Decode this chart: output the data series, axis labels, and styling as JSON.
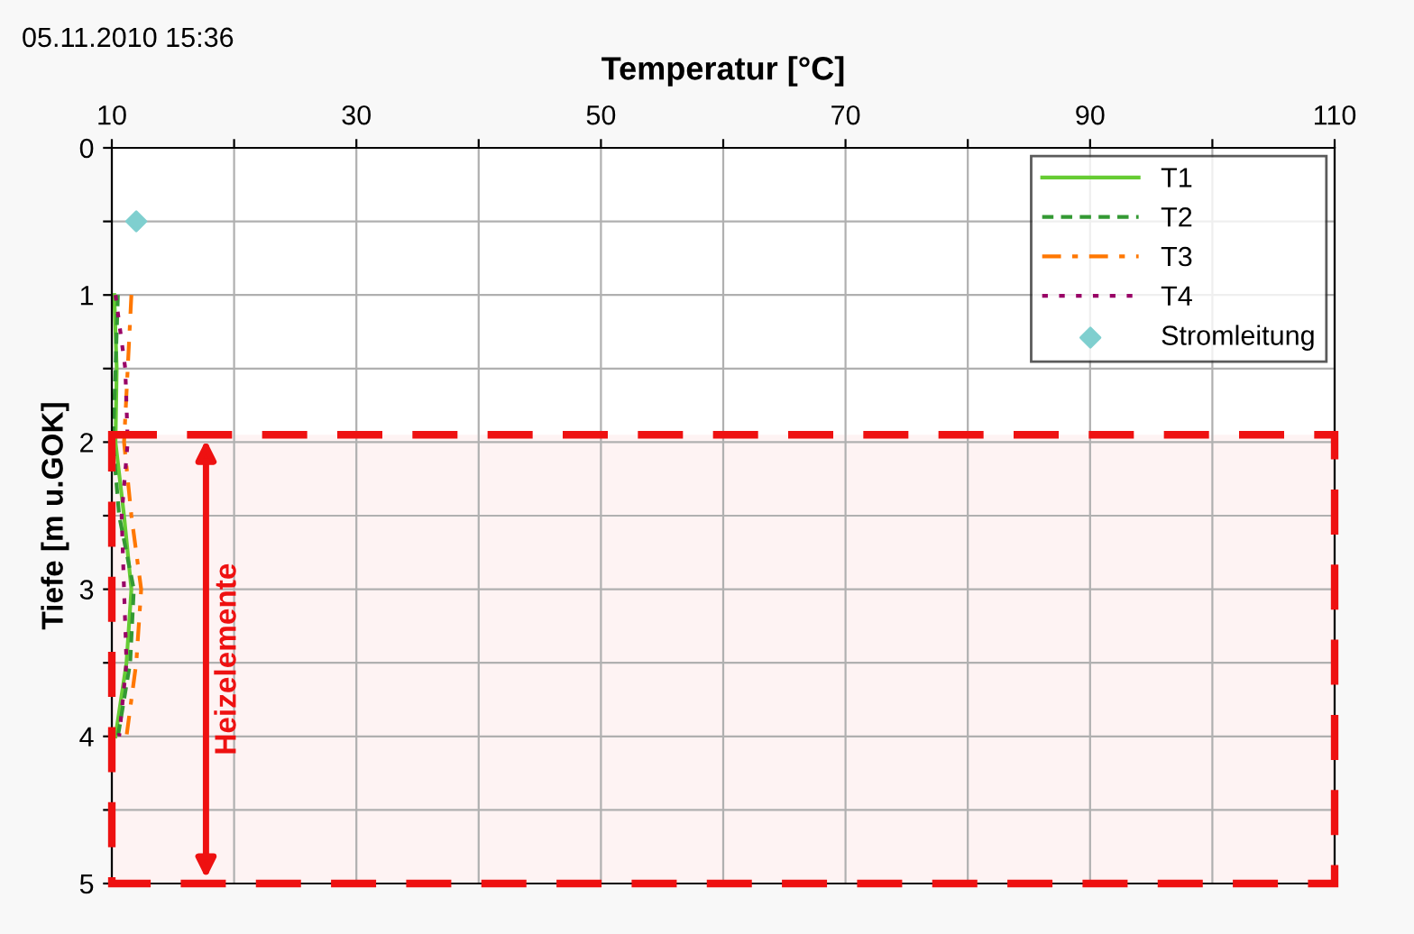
{
  "chart_data": {
    "type": "line",
    "xlabel": "Temperatur [°C]",
    "ylabel": "Tiefe [m u.GOK]",
    "annotations": [
      "05.11.2010 15:36"
    ],
    "xlim": [
      10,
      110
    ],
    "ylim": [
      5,
      0
    ],
    "xticks": [
      10,
      {
        "value": 20,
        "label": null
      },
      30,
      {
        "value": 40,
        "label": null
      },
      50,
      {
        "value": 60,
        "label": null
      },
      70,
      {
        "value": 80,
        "label": null
      },
      90,
      {
        "value": 100,
        "label": null
      },
      110
    ],
    "yticks": [
      0,
      {
        "value": 0.5,
        "label": null
      },
      1,
      {
        "value": 1.5,
        "label": null
      },
      2,
      {
        "value": 2.5,
        "label": null
      },
      3,
      {
        "value": 3.5,
        "label": null
      },
      4,
      {
        "value": 4.5,
        "label": null
      },
      5
    ],
    "grid": true,
    "legend": "top right",
    "series": [
      {
        "name": "T1",
        "color": "#66cc33",
        "line_style": "solid",
        "x": [
          10.2,
          10.4,
          10.3,
          11.0,
          11.6,
          11.2,
          10.3
        ],
        "values": [
          1,
          1.5,
          2,
          2.5,
          3,
          3.5,
          4
        ]
      },
      {
        "name": "T2",
        "color": "#339933",
        "line_style": "dashed",
        "x": [
          10.5,
          10.3,
          10.1,
          10.6,
          11.8,
          11.5,
          10.5
        ],
        "values": [
          1,
          1.5,
          2,
          2.5,
          3,
          3.5,
          4
        ]
      },
      {
        "name": "T3",
        "color": "#ff7700",
        "line_style": "dashdot",
        "x": [
          11.6,
          11.3,
          11.0,
          11.6,
          12.4,
          12.0,
          11.2
        ],
        "values": [
          1,
          1.5,
          2,
          2.5,
          3,
          3.5,
          4
        ]
      },
      {
        "name": "T4",
        "color": "#990066",
        "line_style": "dotted",
        "x": [
          10.3,
          11.1,
          11.3,
          10.8,
          11.0,
          11.2,
          10.6
        ],
        "values": [
          1,
          1.5,
          2,
          2.5,
          3,
          3.5,
          4
        ]
      },
      {
        "name": "Stromleitung",
        "type": "scatter",
        "marker": "diamond",
        "color": "#7fcfcf",
        "x": [
          12
        ],
        "values": [
          0.5
        ]
      }
    ],
    "bands": [
      {
        "axis": "y",
        "from": 1.95,
        "to": 5,
        "label": "Heizelemente",
        "color": "#ee1111"
      }
    ]
  }
}
